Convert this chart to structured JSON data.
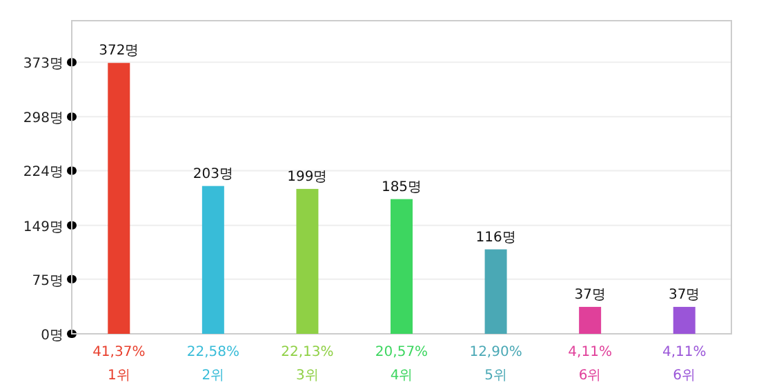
{
  "chart_data": {
    "type": "bar",
    "categories": [
      "41,37%\n1위",
      "22,58%\n2위",
      "22,13%\n3위",
      "20,57%\n4위",
      "12,90%\n5위",
      "4,11%\n6위",
      "4,11%\n6위"
    ],
    "values": [
      372,
      203,
      199,
      185,
      116,
      37,
      37
    ],
    "colors": [
      "#e8402e",
      "#38bcd8",
      "#8fd045",
      "#3dd660",
      "#4aa8b5",
      "#e0409a",
      "#9a55d8"
    ],
    "value_labels": [
      "372명",
      "203명",
      "199명",
      "185명",
      "116명",
      "37명",
      "37명"
    ],
    "ylim": [
      0,
      430
    ],
    "yticks": [
      {
        "value": 0,
        "label": "0명"
      },
      {
        "value": 75,
        "label": "75명"
      },
      {
        "value": 149,
        "label": "149명"
      },
      {
        "value": 224,
        "label": "224명"
      },
      {
        "value": 298,
        "label": "298명"
      },
      {
        "value": 373,
        "label": "373명"
      }
    ],
    "grid": "y"
  }
}
